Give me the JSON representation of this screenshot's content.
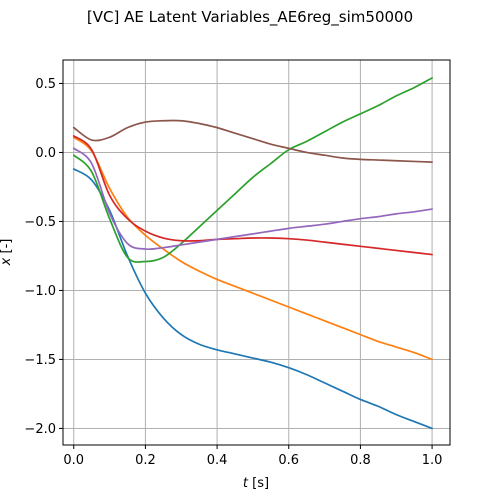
{
  "chart_data": {
    "type": "line",
    "title": "[VC] AE Latent Variables_AE6reg_sim50000",
    "xlabel_italic": "t",
    "xlabel_unit": " [s]",
    "ylabel_italic": "x",
    "ylabel_unit": " [-]",
    "xlim": [
      -0.03,
      1.05
    ],
    "ylim": [
      -2.12,
      0.67
    ],
    "xticks": [
      0.0,
      0.2,
      0.4,
      0.6,
      0.8,
      1.0
    ],
    "xtick_labels": [
      "0.0",
      "0.2",
      "0.4",
      "0.6",
      "0.8",
      "1.0"
    ],
    "yticks": [
      0.5,
      0.0,
      -0.5,
      -1.0,
      -1.5,
      -2.0
    ],
    "ytick_labels": [
      "0.5",
      "0.0",
      "−0.5",
      "−1.0",
      "−1.5",
      "−2.0"
    ],
    "grid": true,
    "x": [
      0.0,
      0.05,
      0.1,
      0.15,
      0.2,
      0.25,
      0.3,
      0.35,
      0.4,
      0.45,
      0.5,
      0.55,
      0.6,
      0.65,
      0.7,
      0.75,
      0.8,
      0.85,
      0.9,
      0.95,
      1.0
    ],
    "series": [
      {
        "color": "#1f77b4",
        "values": [
          -0.12,
          -0.2,
          -0.42,
          -0.75,
          -1.02,
          -1.2,
          -1.32,
          -1.39,
          -1.43,
          -1.46,
          -1.49,
          -1.52,
          -1.56,
          -1.61,
          -1.67,
          -1.73,
          -1.79,
          -1.84,
          -1.9,
          -1.95,
          -2.0
        ]
      },
      {
        "color": "#ff7f0e",
        "values": [
          0.11,
          0.01,
          -0.26,
          -0.47,
          -0.6,
          -0.7,
          -0.79,
          -0.86,
          -0.92,
          -0.97,
          -1.02,
          -1.07,
          -1.12,
          -1.17,
          -1.22,
          -1.27,
          -1.32,
          -1.37,
          -1.41,
          -1.45,
          -1.5
        ]
      },
      {
        "color": "#2ca02c",
        "values": [
          -0.02,
          -0.14,
          -0.48,
          -0.76,
          -0.79,
          -0.76,
          -0.66,
          -0.54,
          -0.42,
          -0.3,
          -0.18,
          -0.08,
          0.02,
          0.08,
          0.15,
          0.22,
          0.28,
          0.34,
          0.41,
          0.47,
          0.54
        ]
      },
      {
        "color": "#d62728",
        "values": [
          0.12,
          0.02,
          -0.31,
          -0.48,
          -0.57,
          -0.62,
          -0.64,
          -0.64,
          -0.63,
          -0.625,
          -0.62,
          -0.62,
          -0.625,
          -0.635,
          -0.65,
          -0.665,
          -0.68,
          -0.695,
          -0.71,
          -0.725,
          -0.74
        ]
      },
      {
        "color": "#9467bd",
        "values": [
          0.03,
          -0.08,
          -0.44,
          -0.66,
          -0.7,
          -0.69,
          -0.67,
          -0.65,
          -0.63,
          -0.61,
          -0.59,
          -0.57,
          -0.55,
          -0.535,
          -0.52,
          -0.5,
          -0.48,
          -0.465,
          -0.445,
          -0.43,
          -0.41
        ]
      },
      {
        "color": "#8c564b",
        "values": [
          0.18,
          0.09,
          0.11,
          0.18,
          0.22,
          0.23,
          0.23,
          0.21,
          0.18,
          0.14,
          0.1,
          0.06,
          0.03,
          0.0,
          -0.02,
          -0.04,
          -0.05,
          -0.055,
          -0.06,
          -0.065,
          -0.07
        ]
      }
    ]
  }
}
